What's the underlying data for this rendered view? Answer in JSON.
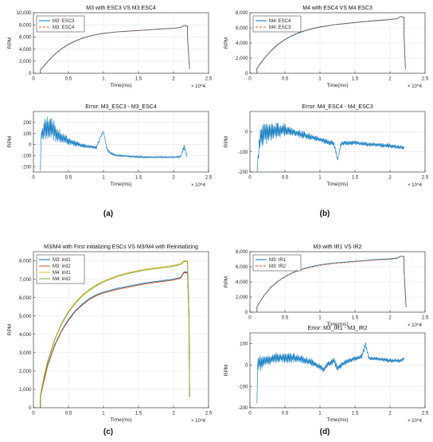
{
  "panel_labels": [
    "(a)",
    "(b)",
    "(c)",
    "(d)"
  ],
  "colors": {
    "blue": "#0072BD",
    "red": "#D95319",
    "yellow": "#EDB120",
    "purple": "#7E2F8E",
    "green": "#77AC30",
    "axis": "#262626",
    "grid": "#e6e6e6"
  },
  "chart_data": [
    {
      "type": "line",
      "title": "M3 with ESC3 VS M3 ESC4",
      "xlabel": "Time(ms)",
      "ylabel": "RPM",
      "x_exponent": "× 10^4",
      "xlim": [
        0,
        2.5
      ],
      "ylim": [
        0,
        10000
      ],
      "grid": true,
      "legend": "top-left",
      "xticks": [
        0,
        0.5,
        1,
        1.5,
        2,
        2.5
      ],
      "xtick_labels": [
        "0",
        "0.5",
        "1",
        "1.5",
        "2",
        "2.5"
      ],
      "yticks": [
        0,
        2000,
        4000,
        6000,
        8000,
        10000
      ],
      "ytick_labels": [
        "0",
        "2,000",
        "4,000",
        "6,000",
        "8,000",
        "10,000"
      ],
      "series": [
        {
          "name": "M3: ESC3",
          "color": "#0072BD",
          "dash": "solid",
          "x": [
            0.1,
            0.1,
            0.15,
            0.2,
            0.3,
            0.4,
            0.5,
            0.6,
            0.7,
            0.8,
            0.9,
            1.0,
            1.2,
            1.4,
            1.6,
            1.8,
            2.0,
            2.1,
            2.15,
            2.2,
            2.2,
            2.23
          ],
          "y": [
            0,
            600,
            1200,
            1900,
            3100,
            4050,
            4800,
            5350,
            5800,
            6150,
            6400,
            6600,
            6850,
            7000,
            7150,
            7300,
            7450,
            7550,
            7900,
            7800,
            6000,
            700
          ]
        },
        {
          "name": "M3: ESC4",
          "color": "#D95319",
          "dash": "dash",
          "x": [
            0.1,
            0.1,
            0.15,
            0.2,
            0.3,
            0.4,
            0.5,
            0.6,
            0.7,
            0.8,
            0.9,
            1.0,
            1.2,
            1.4,
            1.6,
            1.8,
            2.0,
            2.1,
            2.15,
            2.2,
            2.2,
            2.23
          ],
          "y": [
            0,
            550,
            1150,
            1850,
            3050,
            4000,
            4750,
            5300,
            5750,
            6100,
            6380,
            6570,
            6830,
            6980,
            7130,
            7290,
            7440,
            7540,
            7920,
            7800,
            6000,
            650
          ]
        }
      ]
    },
    {
      "type": "line",
      "title": "M4 with ESC4 VS M4 ESC3",
      "xlabel": "Time(ms)",
      "ylabel": "RPM",
      "x_exponent": "× 10^4",
      "xlim": [
        0,
        2.5
      ],
      "ylim": [
        0,
        8000
      ],
      "grid": true,
      "legend": "top-left",
      "xticks": [
        0,
        0.5,
        1,
        1.5,
        2,
        2.5
      ],
      "xtick_labels": [
        "0",
        "0.5",
        "1",
        "1.5",
        "2",
        "2.5"
      ],
      "yticks": [
        0,
        2000,
        4000,
        6000,
        8000
      ],
      "ytick_labels": [
        "0",
        "2,000",
        "4,000",
        "6,000",
        "8,000"
      ],
      "series": [
        {
          "name": "M4: ESC4",
          "color": "#0072BD",
          "dash": "solid",
          "x": [
            0.1,
            0.1,
            0.15,
            0.2,
            0.3,
            0.4,
            0.5,
            0.6,
            0.7,
            0.8,
            0.9,
            1.0,
            1.2,
            1.4,
            1.6,
            1.8,
            2.0,
            2.1,
            2.15,
            2.2,
            2.2,
            2.22
          ],
          "y": [
            0,
            600,
            1300,
            1900,
            2950,
            3800,
            4450,
            4950,
            5350,
            5650,
            5900,
            6100,
            6400,
            6600,
            6800,
            6950,
            7100,
            7200,
            7500,
            7400,
            5000,
            500
          ]
        },
        {
          "name": "M4: ESC3",
          "color": "#D95319",
          "dash": "dash",
          "x": [
            0.1,
            0.1,
            0.15,
            0.2,
            0.3,
            0.4,
            0.5,
            0.6,
            0.7,
            0.8,
            0.9,
            1.0,
            1.2,
            1.4,
            1.6,
            1.8,
            2.0,
            2.1,
            2.15,
            2.2,
            2.2,
            2.22
          ],
          "y": [
            0,
            650,
            1350,
            1950,
            3000,
            3850,
            4500,
            5000,
            5400,
            5700,
            5950,
            6150,
            6430,
            6630,
            6830,
            6980,
            7120,
            7220,
            7520,
            7420,
            5000,
            500
          ]
        }
      ]
    },
    {
      "type": "line",
      "title": "Error: M3_ESC3 - M3_ESC4",
      "xlabel": "Time(ms)",
      "ylabel": "RPM",
      "x_exponent": "× 10^4",
      "xlim": [
        0,
        2.5
      ],
      "ylim": [
        -250,
        300
      ],
      "grid": true,
      "xticks": [
        0,
        0.5,
        1,
        1.5,
        2,
        2.5
      ],
      "xtick_labels": [
        "0",
        "0.5",
        "1",
        "1.5",
        "2",
        "2.5"
      ],
      "yticks": [
        -200,
        -100,
        0,
        100,
        200
      ],
      "ytick_labels": [
        "-200",
        "-100",
        "0",
        "100",
        "200"
      ],
      "series": [
        {
          "name": "",
          "color": "#0072BD",
          "noise": true,
          "x": [
            0.1,
            0.1,
            0.15,
            0.2,
            0.25,
            0.3,
            0.35,
            0.4,
            0.5,
            0.6,
            0.7,
            0.8,
            0.9,
            0.95,
            1.0,
            1.05,
            1.1,
            1.2,
            1.4,
            1.6,
            1.8,
            2.0,
            2.1,
            2.15,
            2.2
          ],
          "y": [
            -240,
            60,
            120,
            150,
            170,
            120,
            80,
            60,
            30,
            10,
            -10,
            -20,
            -30,
            60,
            120,
            -40,
            -80,
            -100,
            -110,
            -115,
            -115,
            -115,
            -110,
            -20,
            -120
          ],
          "amp": [
            0,
            40,
            110,
            120,
            130,
            90,
            70,
            60,
            40,
            30,
            20,
            15,
            15,
            10,
            10,
            15,
            15,
            10,
            8,
            8,
            8,
            8,
            10,
            20,
            10
          ]
        }
      ]
    },
    {
      "type": "line",
      "title": "Error: M4_ESC4 - M4_ESC3",
      "xlabel": "Time(ms)",
      "ylabel": "RPM",
      "x_exponent": "× 10^4",
      "xlim": [
        0,
        2.5
      ],
      "ylim": [
        -200,
        100
      ],
      "grid": true,
      "xticks": [
        0,
        0.5,
        1,
        1.5,
        2,
        2.5
      ],
      "xtick_labels": [
        "0",
        "0.5",
        "1",
        "1.5",
        "2",
        "2.5"
      ],
      "yticks": [
        -200,
        -100,
        0
      ],
      "ytick_labels": [
        "-200",
        "-100",
        "0"
      ],
      "series": [
        {
          "name": "",
          "color": "#0072BD",
          "noise": true,
          "x": [
            0.1,
            0.12,
            0.15,
            0.2,
            0.3,
            0.4,
            0.5,
            0.6,
            0.7,
            0.8,
            0.9,
            1.0,
            1.1,
            1.2,
            1.25,
            1.3,
            1.4,
            1.5,
            1.6,
            1.8,
            2.0,
            2.2
          ],
          "y": [
            -200,
            -120,
            -20,
            -10,
            0,
            5,
            10,
            0,
            -10,
            -20,
            -30,
            -40,
            -50,
            -60,
            -140,
            -60,
            -55,
            -55,
            -60,
            -65,
            -70,
            -80
          ],
          "amp": [
            0,
            30,
            60,
            60,
            50,
            40,
            35,
            25,
            20,
            20,
            18,
            15,
            15,
            15,
            10,
            15,
            12,
            12,
            12,
            12,
            12,
            10
          ]
        }
      ]
    },
    {
      "type": "line",
      "title": "M3/M4 with First initializing ESCs VS M3/M4 with Reinitializing",
      "xlabel": "Time(ms)",
      "ylabel": "RPM",
      "x_exponent": "× 10^4",
      "xlim": [
        0,
        2.5
      ],
      "ylim": [
        0,
        8500
      ],
      "grid": true,
      "legend": "top-left",
      "xticks": [
        0,
        0.5,
        1,
        1.5,
        2,
        2.5
      ],
      "xtick_labels": [
        "0",
        "0.5",
        "1",
        "1.5",
        "2",
        "2.5"
      ],
      "yticks": [
        0,
        1000,
        2000,
        3000,
        4000,
        5000,
        6000,
        7000,
        8000
      ],
      "ytick_labels": [
        "0",
        "1,000",
        "2,000",
        "3,000",
        "4,000",
        "5,000",
        "6,000",
        "7,000",
        "8,000"
      ],
      "series": [
        {
          "name": "M3: init1",
          "color": "#0072BD",
          "dash": "solid",
          "x": [
            0.1,
            0.1,
            0.15,
            0.2,
            0.3,
            0.4,
            0.5,
            0.6,
            0.7,
            0.8,
            0.9,
            1.0,
            1.2,
            1.4,
            1.6,
            1.8,
            2.0,
            2.1,
            2.15,
            2.2,
            2.22,
            2.23
          ],
          "y": [
            0,
            600,
            1500,
            2300,
            3400,
            4200,
            4800,
            5300,
            5650,
            5950,
            6150,
            6300,
            6500,
            6650,
            6800,
            6900,
            7000,
            7100,
            7400,
            7400,
            5000,
            600
          ]
        },
        {
          "name": "M3: init2",
          "color": "#D95319",
          "dash": "solid",
          "x": [
            0.1,
            0.1,
            0.15,
            0.2,
            0.3,
            0.4,
            0.5,
            0.6,
            0.7,
            0.8,
            0.9,
            1.0,
            1.2,
            1.4,
            1.6,
            1.8,
            2.0,
            2.1,
            2.15,
            2.2,
            2.22,
            2.23
          ],
          "y": [
            0,
            600,
            1450,
            2250,
            3350,
            4150,
            4750,
            5250,
            5600,
            5900,
            6100,
            6250,
            6450,
            6600,
            6750,
            6850,
            6950,
            7050,
            7350,
            7350,
            5000,
            600
          ]
        },
        {
          "name": "M4: init1",
          "color": "#EDB120",
          "dash": "solid",
          "x": [
            0.1,
            0.1,
            0.15,
            0.2,
            0.3,
            0.4,
            0.5,
            0.6,
            0.7,
            0.8,
            0.9,
            1.0,
            1.2,
            1.4,
            1.6,
            1.8,
            2.0,
            2.1,
            2.15,
            2.2,
            2.22,
            2.23
          ],
          "y": [
            0,
            700,
            1700,
            2500,
            3700,
            4600,
            5250,
            5750,
            6150,
            6450,
            6700,
            6900,
            7200,
            7400,
            7550,
            7650,
            7750,
            7850,
            8000,
            8000,
            5000,
            600
          ]
        },
        {
          "name": "M4: init2",
          "color": "#77AC30",
          "dash": "solid",
          "x": [
            0.1,
            0.1,
            0.15,
            0.2,
            0.3,
            0.4,
            0.5,
            0.6,
            0.7,
            0.8,
            0.9,
            1.0,
            1.2,
            1.4,
            1.6,
            1.8,
            2.0,
            2.1,
            2.15,
            2.2,
            2.22,
            2.23
          ],
          "y": [
            0,
            650,
            1650,
            2450,
            3650,
            4550,
            5200,
            5700,
            6100,
            6400,
            6650,
            6850,
            7150,
            7350,
            7500,
            7600,
            7700,
            7800,
            7950,
            7950,
            5000,
            600
          ]
        }
      ]
    },
    {
      "type": "line",
      "title": "M3 with IR1 VS IR2",
      "xlabel": "Time(ms)",
      "ylabel": "RPM",
      "x_exponent": "× 10^4",
      "xlim": [
        0,
        2.5
      ],
      "ylim": [
        0,
        8000
      ],
      "grid": true,
      "legend": "top-left",
      "xticks": [
        0,
        0.5,
        1,
        1.5,
        2,
        2.5
      ],
      "xtick_labels": [
        "0",
        "0.5",
        "1",
        "1.5",
        "2",
        "2.5"
      ],
      "yticks": [
        0,
        2000,
        4000,
        6000,
        8000
      ],
      "ytick_labels": [
        "0",
        "2,000",
        "4,000",
        "6,000",
        "8,000"
      ],
      "series": [
        {
          "name": "M3: IR1",
          "color": "#0072BD",
          "dash": "solid",
          "x": [
            0.1,
            0.1,
            0.15,
            0.2,
            0.3,
            0.4,
            0.5,
            0.6,
            0.7,
            0.8,
            0.9,
            1.0,
            1.2,
            1.4,
            1.6,
            1.8,
            2.0,
            2.1,
            2.15,
            2.2,
            2.2,
            2.23
          ],
          "y": [
            0,
            700,
            1500,
            2200,
            3300,
            4100,
            4700,
            5200,
            5550,
            5850,
            6050,
            6250,
            6500,
            6650,
            6800,
            6950,
            7050,
            7150,
            7400,
            7350,
            5500,
            700
          ]
        },
        {
          "name": "M3: IR2",
          "color": "#D95319",
          "dash": "dash",
          "x": [
            0.1,
            0.1,
            0.15,
            0.2,
            0.3,
            0.4,
            0.5,
            0.6,
            0.7,
            0.8,
            0.9,
            1.0,
            1.2,
            1.4,
            1.6,
            1.8,
            2.0,
            2.1,
            2.15,
            2.2,
            2.2,
            2.23
          ],
          "y": [
            0,
            650,
            1450,
            2150,
            3250,
            4050,
            4650,
            5150,
            5500,
            5800,
            6000,
            6200,
            6450,
            6600,
            6750,
            6900,
            7000,
            7100,
            7380,
            7330,
            5500,
            650
          ]
        }
      ]
    },
    {
      "type": "line",
      "title": "Error: M3_IR1 - M3_IR2",
      "xlabel": "Time(ms)",
      "ylabel": "RPM",
      "x_exponent": "× 10^4",
      "xlim": [
        0,
        2.5
      ],
      "ylim": [
        -200,
        150
      ],
      "grid": true,
      "xticks": [
        0,
        0.5,
        1,
        1.5,
        2,
        2.5
      ],
      "xtick_labels": [
        "0",
        "0.5",
        "1",
        "1.5",
        "2",
        "2.5"
      ],
      "yticks": [
        -200,
        -100,
        0,
        100
      ],
      "ytick_labels": [
        "-200",
        "-100",
        "0",
        "100"
      ],
      "series": [
        {
          "name": "",
          "color": "#0072BD",
          "noise": true,
          "x": [
            0.1,
            0.1,
            0.15,
            0.2,
            0.3,
            0.4,
            0.5,
            0.6,
            0.7,
            0.8,
            0.9,
            1.0,
            1.05,
            1.1,
            1.2,
            1.25,
            1.3,
            1.4,
            1.5,
            1.6,
            1.65,
            1.7,
            1.8,
            2.0,
            2.15,
            2.2
          ],
          "y": [
            -180,
            0,
            10,
            20,
            25,
            35,
            30,
            35,
            30,
            20,
            10,
            -10,
            -20,
            0,
            20,
            -20,
            0,
            20,
            30,
            40,
            100,
            30,
            30,
            20,
            20,
            30
          ],
          "amp": [
            0,
            30,
            40,
            35,
            30,
            25,
            25,
            25,
            20,
            20,
            20,
            15,
            15,
            15,
            15,
            15,
            15,
            12,
            12,
            12,
            15,
            10,
            10,
            10,
            10,
            10
          ]
        }
      ]
    }
  ]
}
